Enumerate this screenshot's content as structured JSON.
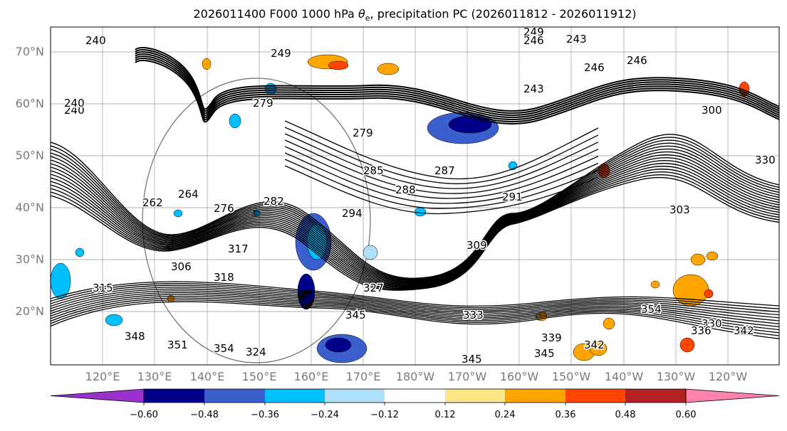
{
  "title": {
    "prefix": "2026011400 F000 1000 hPa ",
    "symbol": "θ",
    "subscript": "e",
    "suffix": ", precipitation PC (2026011812 - 2026011912)"
  },
  "map": {
    "lat_labels": [
      "70°N",
      "60°N",
      "50°N",
      "40°N",
      "30°N",
      "20°N"
    ],
    "lon_labels": [
      "120°E",
      "130°E",
      "140°E",
      "150°E",
      "160°E",
      "170°E",
      "180°W",
      "170°W",
      "160°W",
      "150°W",
      "140°W",
      "130°W",
      "120°W"
    ],
    "contour_labels": [
      "240",
      "240",
      "249",
      "249",
      "246",
      "243",
      "246",
      "246",
      "243",
      "240",
      "279",
      "285",
      "287",
      "288",
      "291",
      "300",
      "303",
      "306",
      "309",
      "315",
      "317",
      "318",
      "324",
      "327",
      "330",
      "333",
      "336",
      "339",
      "342",
      "345",
      "345",
      "348",
      "351",
      "354",
      "264",
      "276",
      "282",
      "294",
      "279",
      "262",
      "330",
      "342",
      "345",
      "354"
    ],
    "colors": {
      "contour": "#000000",
      "grid": "#9a9a9a",
      "land_coast": "#6e6e6e"
    }
  },
  "colorbar": {
    "ticks": [
      "−0.60",
      "−0.48",
      "−0.36",
      "−0.24",
      "−0.12",
      "0.12",
      "0.24",
      "0.36",
      "0.48",
      "0.60"
    ],
    "colors": [
      "#9932cc",
      "#00008b",
      "#3a5fcd",
      "#00bfff",
      "#b0e0f8",
      "#ffffff",
      "#fde68a",
      "#ffa500",
      "#ff4500",
      "#b22222",
      "#ff82ab"
    ]
  }
}
